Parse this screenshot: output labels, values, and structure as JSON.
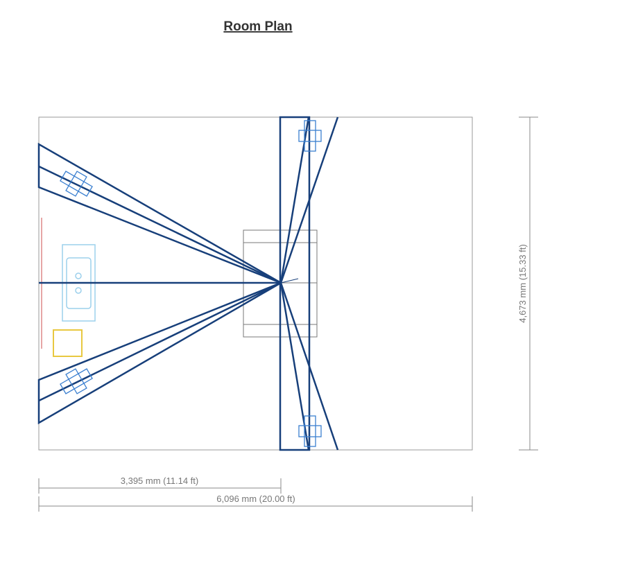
{
  "title": "Room Plan",
  "dimensions": {
    "partial_width": "3,395 mm (11.14 ft)",
    "width": "6,096 mm (20.00 ft)",
    "depth": "4,673 mm (15.33 ft)"
  }
}
